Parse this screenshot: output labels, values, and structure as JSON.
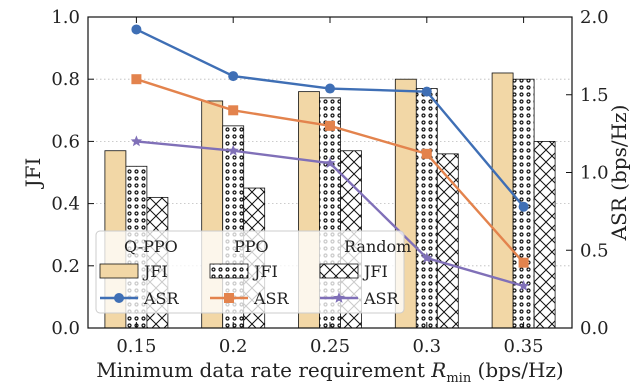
{
  "chart_data": {
    "type": "bar",
    "categories": [
      "0.15",
      "0.2",
      "0.25",
      "0.3",
      "0.35"
    ],
    "xlabel": "Minimum data rate requirement",
    "xlabel_symbol": "R",
    "xlabel_subscript": "min",
    "xlabel_unit": "(bps/Hz)",
    "ylabel_left": "JFI",
    "ylabel_right": "ASR (bps/Hz)",
    "ylim_left": [
      0.0,
      1.0
    ],
    "ylim_right": [
      0.0,
      2.0
    ],
    "yticks_left": [
      "0.0",
      "0.2",
      "0.4",
      "0.6",
      "0.8",
      "1.0"
    ],
    "yticks_right": [
      "0.0",
      "0.5",
      "1.0",
      "1.5",
      "2.0"
    ],
    "grid": "horizontal dotted",
    "bar_series": [
      {
        "name": "JFI",
        "method": "Q-PPO",
        "pattern": "solid",
        "color": "#f2d7a6",
        "values": [
          0.57,
          0.73,
          0.76,
          0.8,
          0.82
        ]
      },
      {
        "name": "JFI",
        "method": "PPO",
        "pattern": "dots",
        "color": "#ffffff",
        "values": [
          0.52,
          0.65,
          0.74,
          0.77,
          0.8
        ]
      },
      {
        "name": "JFI",
        "method": "Random",
        "pattern": "crosshatch",
        "color": "#ffffff",
        "values": [
          0.42,
          0.45,
          0.57,
          0.56,
          0.6
        ]
      }
    ],
    "line_series": [
      {
        "name": "ASR",
        "method": "Q-PPO",
        "marker": "circle",
        "color": "#3f6fb5",
        "values": [
          1.92,
          1.62,
          1.54,
          1.52,
          0.78
        ]
      },
      {
        "name": "ASR",
        "method": "PPO",
        "marker": "square",
        "color": "#e3834d",
        "values": [
          1.6,
          1.4,
          1.3,
          1.12,
          0.42
        ]
      },
      {
        "name": "ASR",
        "method": "Random",
        "marker": "star",
        "color": "#8070b8",
        "values": [
          1.2,
          1.14,
          1.06,
          0.45,
          0.27
        ]
      }
    ],
    "legend": {
      "placement": "lower-left",
      "column_titles": [
        "Q-PPO",
        "PPO",
        "Random"
      ],
      "bar_label": "JFI",
      "line_label": "ASR"
    }
  }
}
